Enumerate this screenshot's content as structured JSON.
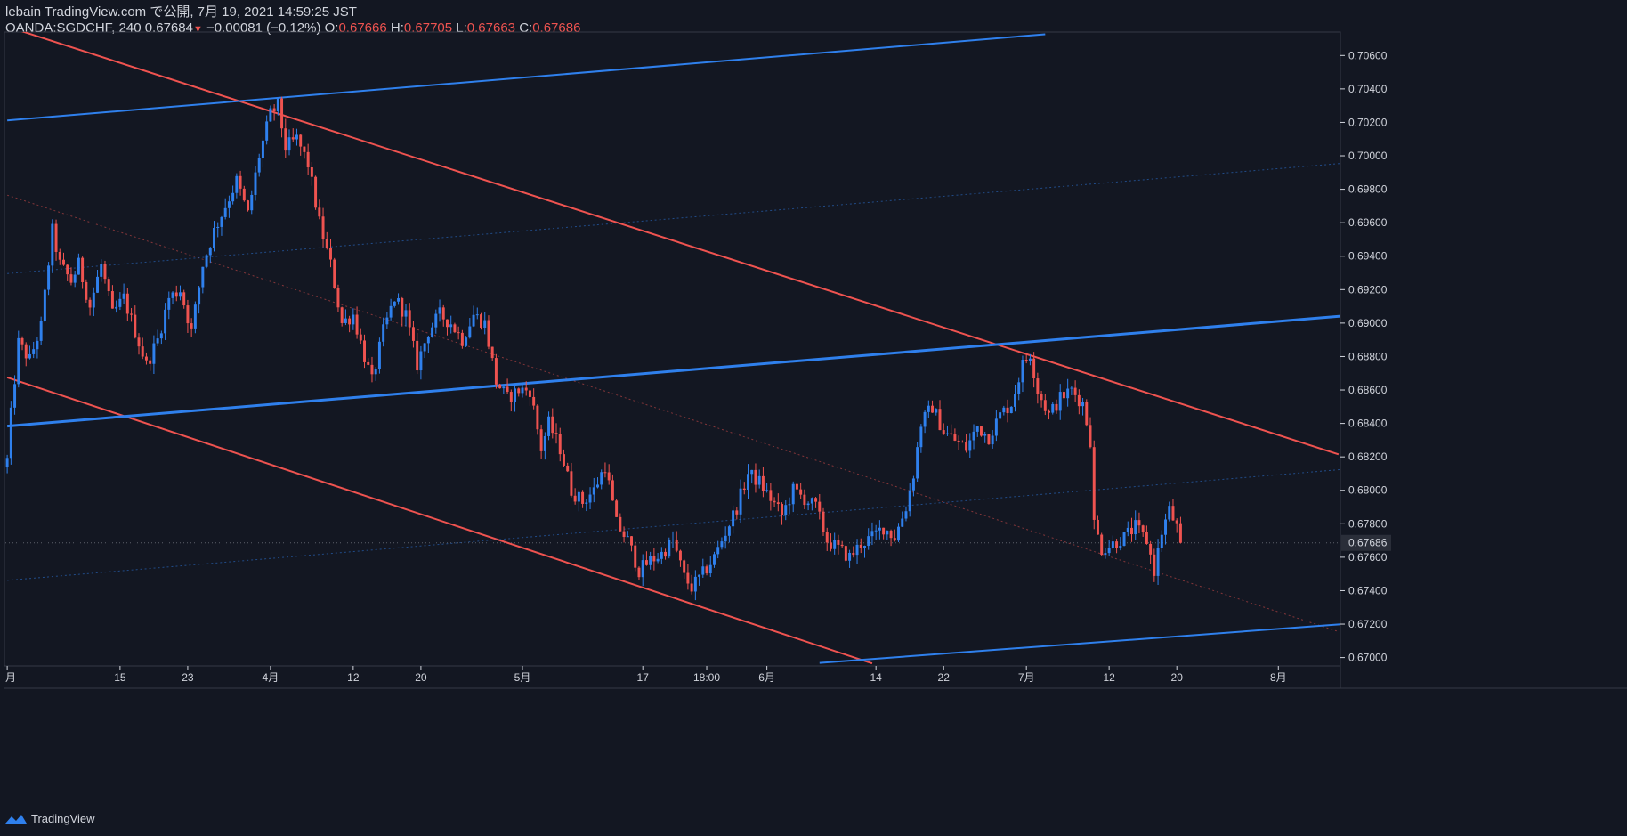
{
  "header": {
    "publisher": "lebain TradingView.com で公開, 7月 19, 2021 14:59:25 JST",
    "symbol": "OANDA:SGDCHF, 240",
    "last": "0.67684",
    "arrow": "▼",
    "change": "−0.00081 (−0.12%)",
    "o_label": "O:",
    "o_val": "0.67666",
    "h_label": "H:",
    "h_val": "0.67705",
    "l_label": "L:",
    "l_val": "0.67663",
    "c_label": "C:",
    "c_val": "0.67686"
  },
  "footer": {
    "brand": "TradingView",
    "logo_icon": "tradingview-logo-icon"
  },
  "colors": {
    "background": "#131722",
    "up": "#2f80ed",
    "down": "#ef5350",
    "text": "#d1d4dc",
    "price_label_bg": "#2a2e39"
  },
  "chart_data": {
    "type": "candlestick",
    "ylim": [
      0.6695,
      0.7074
    ],
    "y_ticks": [
      "0.70600",
      "0.70400",
      "0.70200",
      "0.70000",
      "0.69800",
      "0.69600",
      "0.69400",
      "0.69200",
      "0.69000",
      "0.68800",
      "0.68600",
      "0.68400",
      "0.68200",
      "0.68000",
      "0.67800",
      "0.67600",
      "0.67400",
      "0.67200",
      "0.67000"
    ],
    "current_price_label": "0.67686",
    "current_price": 0.67686,
    "x_ticks": [
      {
        "label": "月",
        "idx": 0
      },
      {
        "label": "15",
        "idx": 30
      },
      {
        "label": "23",
        "idx": 48
      },
      {
        "label": "4月",
        "idx": 70
      },
      {
        "label": "12",
        "idx": 92
      },
      {
        "label": "20",
        "idx": 110
      },
      {
        "label": "5月",
        "idx": 137
      },
      {
        "label": "17",
        "idx": 169
      },
      {
        "label": "18:00",
        "idx": 186
      },
      {
        "label": "6月",
        "idx": 202
      },
      {
        "label": "14",
        "idx": 231
      },
      {
        "label": "22",
        "idx": 249
      },
      {
        "label": "7月",
        "idx": 271
      },
      {
        "label": "12",
        "idx": 293
      },
      {
        "label": "20",
        "idx": 311
      },
      {
        "label": "8月",
        "idx": 338
      }
    ],
    "total_slots": 355,
    "keypoints": [
      [
        0,
        0.6818
      ],
      [
        1,
        0.6845
      ],
      [
        3,
        0.6888
      ],
      [
        6,
        0.6878
      ],
      [
        9,
        0.6898
      ],
      [
        12,
        0.6955
      ],
      [
        14,
        0.6935
      ],
      [
        17,
        0.6925
      ],
      [
        19,
        0.6935
      ],
      [
        22,
        0.691
      ],
      [
        25,
        0.6935
      ],
      [
        28,
        0.6905
      ],
      [
        31,
        0.6915
      ],
      [
        34,
        0.6895
      ],
      [
        37,
        0.6875
      ],
      [
        40,
        0.689
      ],
      [
        43,
        0.6915
      ],
      [
        46,
        0.692
      ],
      [
        49,
        0.6895
      ],
      [
        52,
        0.6935
      ],
      [
        55,
        0.6955
      ],
      [
        58,
        0.697
      ],
      [
        61,
        0.6985
      ],
      [
        64,
        0.6965
      ],
      [
        67,
        0.7
      ],
      [
        70,
        0.7025
      ],
      [
        72,
        0.703
      ],
      [
        74,
        0.7005
      ],
      [
        77,
        0.701
      ],
      [
        80,
        0.6995
      ],
      [
        83,
        0.696
      ],
      [
        86,
        0.6935
      ],
      [
        89,
        0.69
      ],
      [
        92,
        0.6905
      ],
      [
        95,
        0.688
      ],
      [
        97,
        0.6865
      ],
      [
        100,
        0.6895
      ],
      [
        103,
        0.6915
      ],
      [
        106,
        0.6905
      ],
      [
        109,
        0.6875
      ],
      [
        112,
        0.6895
      ],
      [
        115,
        0.6905
      ],
      [
        118,
        0.69
      ],
      [
        121,
        0.689
      ],
      [
        124,
        0.6905
      ],
      [
        127,
        0.69
      ],
      [
        130,
        0.6865
      ],
      [
        133,
        0.6855
      ],
      [
        136,
        0.686
      ],
      [
        139,
        0.686
      ],
      [
        142,
        0.6825
      ],
      [
        144,
        0.684
      ],
      [
        147,
        0.6825
      ],
      [
        150,
        0.68
      ],
      [
        153,
        0.6793
      ],
      [
        156,
        0.68
      ],
      [
        159,
        0.6815
      ],
      [
        162,
        0.678
      ],
      [
        165,
        0.677
      ],
      [
        168,
        0.6752
      ],
      [
        171,
        0.6758
      ],
      [
        174,
        0.6762
      ],
      [
        177,
        0.677
      ],
      [
        180,
        0.6748
      ],
      [
        182,
        0.6742
      ],
      [
        185,
        0.675
      ],
      [
        188,
        0.676
      ],
      [
        191,
        0.6775
      ],
      [
        194,
        0.679
      ],
      [
        197,
        0.681
      ],
      [
        200,
        0.6805
      ],
      [
        203,
        0.6795
      ],
      [
        206,
        0.6785
      ],
      [
        209,
        0.68
      ],
      [
        212,
        0.6795
      ],
      [
        215,
        0.679
      ],
      [
        218,
        0.677
      ],
      [
        221,
        0.6765
      ],
      [
        224,
        0.676
      ],
      [
        227,
        0.6768
      ],
      [
        230,
        0.6772
      ],
      [
        233,
        0.6778
      ],
      [
        236,
        0.6772
      ],
      [
        239,
        0.679
      ],
      [
        241,
        0.681
      ],
      [
        243,
        0.684
      ],
      [
        246,
        0.685
      ],
      [
        249,
        0.6835
      ],
      [
        252,
        0.683
      ],
      [
        255,
        0.6825
      ],
      [
        258,
        0.6838
      ],
      [
        261,
        0.6832
      ],
      [
        264,
        0.6845
      ],
      [
        267,
        0.6852
      ],
      [
        270,
        0.6875
      ],
      [
        272,
        0.6882
      ],
      [
        274,
        0.686
      ],
      [
        277,
        0.6845
      ],
      [
        280,
        0.6855
      ],
      [
        283,
        0.686
      ],
      [
        286,
        0.6852
      ],
      [
        288,
        0.683
      ],
      [
        289,
        0.678
      ],
      [
        291,
        0.6765
      ],
      [
        294,
        0.6768
      ],
      [
        297,
        0.6772
      ],
      [
        300,
        0.6778
      ],
      [
        303,
        0.677
      ],
      [
        305,
        0.6752
      ],
      [
        307,
        0.6775
      ],
      [
        309,
        0.6788
      ],
      [
        311,
        0.6778
      ],
      [
        312,
        0.67686
      ]
    ],
    "trendlines": [
      {
        "color": "#ef5350",
        "width": 2,
        "from": [
          -1,
          0.7078
        ],
        "to": [
          354,
          0.68215
        ]
      },
      {
        "color": "#ef5350",
        "width": 2,
        "from": [
          0,
          0.68675
        ],
        "to": [
          230,
          0.66965
        ]
      },
      {
        "color": "#ef5350",
        "width": 1,
        "dash": "2,3",
        "opacity": 0.5,
        "from": [
          0,
          0.69765
        ],
        "to": [
          354,
          0.67155
        ]
      },
      {
        "color": "#2f80ed",
        "width": 2,
        "from": [
          0,
          0.70212
        ],
        "to": [
          276,
          0.70727
        ]
      },
      {
        "color": "#2f80ed",
        "width": 3,
        "from": [
          0,
          0.68384
        ],
        "to": [
          355,
          0.69042
        ]
      },
      {
        "color": "#2f80ed",
        "width": 2,
        "from": [
          216,
          0.66968
        ],
        "to": [
          355,
          0.672
        ]
      },
      {
        "color": "#2f80ed",
        "width": 1,
        "dash": "2,3",
        "opacity": 0.5,
        "from": [
          0,
          0.69296
        ],
        "to": [
          355,
          0.69955
        ]
      },
      {
        "color": "#2f80ed",
        "width": 1,
        "dash": "2,3",
        "opacity": 0.5,
        "from": [
          0,
          0.67462
        ],
        "to": [
          355,
          0.68125
        ]
      }
    ]
  }
}
